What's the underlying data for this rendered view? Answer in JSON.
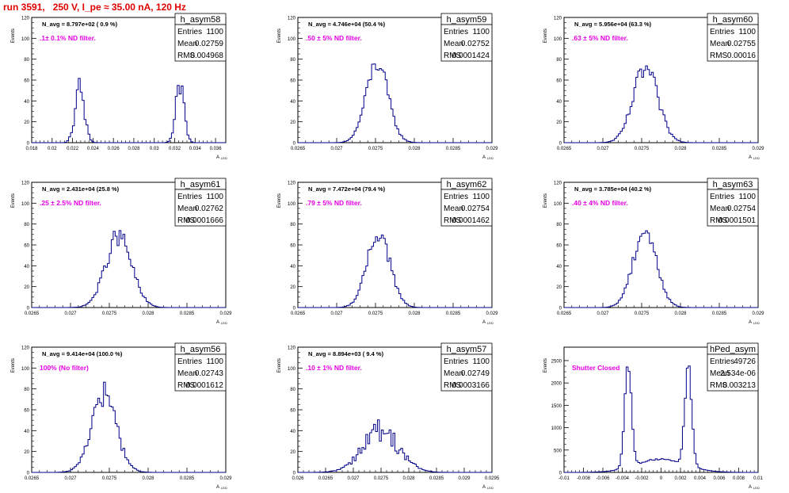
{
  "run_title": "run 3591,   250 V, I_pe ≈ 35.00 nA, 120 Hz",
  "colors": {
    "title": "#e00000",
    "histogram": "#00008b",
    "annotation": "#e600e6",
    "axis": "#000000"
  },
  "stats_labels": {
    "entries": "Entries",
    "mean": "Mean",
    "rms": "RMS"
  },
  "axis_labels": {
    "y": "Events",
    "x": "A",
    "x_sub": "LED"
  },
  "chart_data": [
    {
      "type": "histogram",
      "name": "h_asym58",
      "stats": {
        "entries": "1100",
        "mean": "0.02759",
        "rms": "0.004968"
      },
      "navg": "N_avg = 8.797e+02 ( 0.9 %)",
      "annotation": ".1± 0.1% ND filter.",
      "xlim": [
        0.018,
        0.037
      ],
      "ylim": [
        0,
        120
      ],
      "xticks": [
        0.018,
        0.02,
        0.022,
        0.024,
        0.026,
        0.028,
        0.03,
        0.032,
        0.034,
        0.036
      ],
      "xtick_labels": [
        "0.018",
        "0.02",
        "0.022",
        "0.024",
        "0.026",
        "0.028",
        "0.03",
        "0.032",
        "0.034",
        "0.036"
      ],
      "yticks": [
        0,
        20,
        40,
        60,
        80,
        100,
        120
      ],
      "ytick_labels": [
        "0",
        "20",
        "40",
        "60",
        "80",
        "100",
        "120"
      ],
      "peaks": [
        {
          "center": 0.0227,
          "sigma": 0.00045,
          "height": 52
        },
        {
          "center": 0.0325,
          "sigma": 0.0004,
          "height": 60
        }
      ],
      "nbins": 100,
      "noise": 0.25
    },
    {
      "type": "histogram",
      "name": "h_asym59",
      "stats": {
        "entries": "1100",
        "mean": "0.02752",
        "rms": "0.0001424"
      },
      "navg": "N_avg = 4.746e+04 (50.4 %)",
      "annotation": ".50 ± 5% ND filter.",
      "xlim": [
        0.0265,
        0.029
      ],
      "ylim": [
        0,
        120
      ],
      "xticks": [
        0.0265,
        0.027,
        0.0275,
        0.028,
        0.0285,
        0.029
      ],
      "xtick_labels": [
        "0.0265",
        "0.027",
        "0.0275",
        "0.028",
        "0.0285",
        "0.029"
      ],
      "yticks": [
        0,
        20,
        40,
        60,
        80,
        100,
        120
      ],
      "ytick_labels": [
        "0",
        "20",
        "40",
        "60",
        "80",
        "100",
        "120"
      ],
      "peaks": [
        {
          "center": 0.02752,
          "sigma": 0.000142,
          "height": 76
        }
      ],
      "nbins": 100,
      "noise": 0.12
    },
    {
      "type": "histogram",
      "name": "h_asym60",
      "stats": {
        "entries": "1100",
        "mean": "0.02755",
        "rms": "0.00016"
      },
      "navg": "N_avg = 5.956e+04 (63.3 %)",
      "annotation": ".63 ± 5% ND filter.",
      "xlim": [
        0.0265,
        0.029
      ],
      "ylim": [
        0,
        120
      ],
      "xticks": [
        0.0265,
        0.027,
        0.0275,
        0.028,
        0.0285,
        0.029
      ],
      "xtick_labels": [
        "0.0265",
        "0.027",
        "0.0275",
        "0.028",
        "0.0285",
        "0.029"
      ],
      "yticks": [
        0,
        20,
        40,
        60,
        80,
        100,
        120
      ],
      "ytick_labels": [
        "0",
        "20",
        "40",
        "60",
        "80",
        "100",
        "120"
      ],
      "peaks": [
        {
          "center": 0.02755,
          "sigma": 0.00016,
          "height": 70
        }
      ],
      "nbins": 100,
      "noise": 0.15
    },
    {
      "type": "histogram",
      "name": "h_asym61",
      "stats": {
        "entries": "1100",
        "mean": "0.02762",
        "rms": "0.0001666"
      },
      "navg": "N_avg = 2.431e+04 (25.8 %)",
      "annotation": ".25 ± 2.5% ND filter.",
      "xlim": [
        0.0265,
        0.029
      ],
      "ylim": [
        0,
        120
      ],
      "xticks": [
        0.0265,
        0.027,
        0.0275,
        0.028,
        0.0285,
        0.029
      ],
      "xtick_labels": [
        "0.0265",
        "0.027",
        "0.0275",
        "0.028",
        "0.0285",
        "0.029"
      ],
      "yticks": [
        0,
        20,
        40,
        60,
        80,
        100,
        120
      ],
      "ytick_labels": [
        "0",
        "20",
        "40",
        "60",
        "80",
        "100",
        "120"
      ],
      "peaks": [
        {
          "center": 0.02762,
          "sigma": 0.000167,
          "height": 68
        }
      ],
      "nbins": 100,
      "noise": 0.15
    },
    {
      "type": "histogram",
      "name": "h_asym62",
      "stats": {
        "entries": "1100",
        "mean": "0.02754",
        "rms": "0.0001462"
      },
      "navg": "N_avg = 7.472e+04 (79.4 %)",
      "annotation": ".79 ± 5% ND filter.",
      "xlim": [
        0.0265,
        0.029
      ],
      "ylim": [
        0,
        120
      ],
      "xticks": [
        0.0265,
        0.027,
        0.0275,
        0.028,
        0.0285,
        0.029
      ],
      "xtick_labels": [
        "0.0265",
        "0.027",
        "0.0275",
        "0.028",
        "0.0285",
        "0.029"
      ],
      "yticks": [
        0,
        20,
        40,
        60,
        80,
        100,
        120
      ],
      "ytick_labels": [
        "0",
        "20",
        "40",
        "60",
        "80",
        "100",
        "120"
      ],
      "peaks": [
        {
          "center": 0.02754,
          "sigma": 0.000146,
          "height": 72
        }
      ],
      "nbins": 100,
      "noise": 0.13
    },
    {
      "type": "histogram",
      "name": "h_asym63",
      "stats": {
        "entries": "1100",
        "mean": "0.02754",
        "rms": "0.0001501"
      },
      "navg": "N_avg = 3.785e+04 (40.2 %)",
      "annotation": ".40 ± 4% ND filter.",
      "xlim": [
        0.0265,
        0.029
      ],
      "ylim": [
        0,
        120
      ],
      "xticks": [
        0.0265,
        0.027,
        0.0275,
        0.028,
        0.0285,
        0.029
      ],
      "xtick_labels": [
        "0.0265",
        "0.027",
        "0.0275",
        "0.028",
        "0.0285",
        "0.029"
      ],
      "yticks": [
        0,
        20,
        40,
        60,
        80,
        100,
        120
      ],
      "ytick_labels": [
        "0",
        "20",
        "40",
        "60",
        "80",
        "100",
        "120"
      ],
      "peaks": [
        {
          "center": 0.02754,
          "sigma": 0.00015,
          "height": 74
        }
      ],
      "nbins": 100,
      "noise": 0.13
    },
    {
      "type": "histogram",
      "name": "h_asym56",
      "stats": {
        "entries": "1100",
        "mean": "0.02743",
        "rms": "0.0001612"
      },
      "navg": "N_avg = 9.414e+04 (100.0 %)",
      "annotation": "100% (No filter)",
      "xlim": [
        0.0265,
        0.029
      ],
      "ylim": [
        0,
        120
      ],
      "xticks": [
        0.0265,
        0.027,
        0.0275,
        0.028,
        0.0285,
        0.029
      ],
      "xtick_labels": [
        "0.0265",
        "0.027",
        "0.0275",
        "0.028",
        "0.0285",
        "0.029"
      ],
      "yticks": [
        0,
        20,
        40,
        60,
        80,
        100,
        120
      ],
      "ytick_labels": [
        "0",
        "20",
        "40",
        "60",
        "80",
        "100",
        "120"
      ],
      "peaks": [
        {
          "center": 0.02743,
          "sigma": 0.000161,
          "height": 74
        }
      ],
      "nbins": 100,
      "noise": 0.2
    },
    {
      "type": "histogram",
      "name": "h_asym57",
      "stats": {
        "entries": "1100",
        "mean": "0.02749",
        "rms": "0.0003166"
      },
      "navg": "N_avg = 8.894e+03 ( 9.4 %)",
      "annotation": ".10 ± 1% ND filter.",
      "xlim": [
        0.026,
        0.0295
      ],
      "ylim": [
        0,
        120
      ],
      "xticks": [
        0.026,
        0.0265,
        0.027,
        0.0275,
        0.028,
        0.0285,
        0.029,
        0.0295
      ],
      "xtick_labels": [
        "0.026",
        "0.0265",
        "0.027",
        "0.0275",
        "0.028",
        "0.0285",
        "0.029",
        "0.0295"
      ],
      "yticks": [
        0,
        20,
        40,
        60,
        80,
        100,
        120
      ],
      "ytick_labels": [
        "0",
        "20",
        "40",
        "60",
        "80",
        "100",
        "120"
      ],
      "peaks": [
        {
          "center": 0.02749,
          "sigma": 0.00033,
          "height": 40
        }
      ],
      "nbins": 100,
      "noise": 0.3
    },
    {
      "type": "histogram",
      "name": "hPed_asym",
      "stats": {
        "entries": "49726",
        "mean": "2.534e-06",
        "rms": "0.003213"
      },
      "navg": "",
      "annotation": "Shutter Closed",
      "xlim": [
        -0.01,
        0.01
      ],
      "ylim": [
        0,
        2800
      ],
      "xticks": [
        -0.01,
        -0.008,
        -0.006,
        -0.004,
        -0.002,
        0,
        0.002,
        0.004,
        0.006,
        0.008,
        0.01
      ],
      "xtick_labels": [
        "-0.01",
        "-0.008",
        "-0.006",
        "-0.004",
        "-0.002",
        "0",
        "0.002",
        "0.004",
        "0.006",
        "0.008",
        "0.01"
      ],
      "yticks": [
        0,
        500,
        1000,
        1500,
        2000,
        2500
      ],
      "ytick_labels": [
        "0",
        "500",
        "1000",
        "1500",
        "2000",
        "2500"
      ],
      "peaks": [
        {
          "center": -0.0034,
          "sigma": 0.00035,
          "height": 2300
        },
        {
          "center": 0.0028,
          "sigma": 0.00035,
          "height": 2200
        },
        {
          "center": 0.0,
          "sigma": 0.0025,
          "height": 300
        }
      ],
      "nbins": 100,
      "noise": 0.06
    }
  ]
}
